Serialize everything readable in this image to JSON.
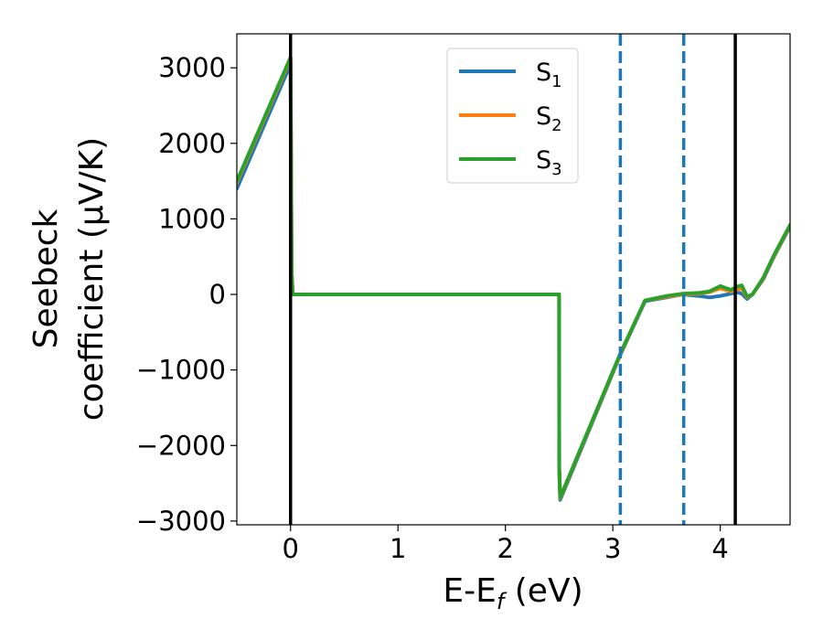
{
  "chart_data": {
    "type": "line",
    "xlabel": "E-E$_f$ (eV)",
    "xlabel_parts": {
      "main": "E-E",
      "sub": "f",
      "unit": " (eV)"
    },
    "ylabel_line1": "Seebeck",
    "ylabel_line2": "coefficient  (μV/K)",
    "xlim": [
      -0.5,
      4.65
    ],
    "ylim": [
      -3050,
      3450
    ],
    "xticks": [
      0,
      1,
      2,
      3,
      4
    ],
    "xtick_labels": [
      "0",
      "1",
      "2",
      "3",
      "4"
    ],
    "yticks": [
      -3000,
      -2000,
      -1000,
      0,
      1000,
      2000,
      3000
    ],
    "ytick_labels": [
      "−3000",
      "−2000",
      "−1000",
      "0",
      "1000",
      "2000",
      "3000"
    ],
    "grid": false,
    "legend_position": "top-center",
    "series": [
      {
        "name": "S1",
        "legend_main": "S",
        "legend_sub": "1",
        "color": "#1f77b4",
        "x": [
          -0.5,
          0.0,
          0.01,
          0.02,
          2.5,
          2.501,
          2.51,
          3.07,
          3.3,
          3.5,
          3.65,
          3.8,
          3.9,
          4.0,
          4.1,
          4.15,
          4.2,
          4.25,
          4.3,
          4.4,
          4.5,
          4.65
        ],
        "y": [
          1400,
          3050,
          300,
          0,
          0,
          -2300,
          -2720,
          -800,
          -90,
          -40,
          0,
          -20,
          -40,
          -20,
          10,
          30,
          10,
          -60,
          0,
          200,
          500,
          900
        ]
      },
      {
        "name": "S2",
        "legend_main": "S",
        "legend_sub": "2",
        "color": "#ff7f0e",
        "x": [
          -0.5,
          0.0,
          0.01,
          0.02,
          2.5,
          2.501,
          2.51,
          3.07,
          3.3,
          3.5,
          3.65,
          3.8,
          3.9,
          4.0,
          4.1,
          4.15,
          4.2,
          4.25,
          4.3,
          4.4,
          4.5,
          4.65
        ],
        "y": [
          1480,
          3120,
          300,
          0,
          0,
          -2300,
          -2700,
          -790,
          -80,
          -30,
          0,
          10,
          30,
          80,
          40,
          60,
          80,
          -40,
          0,
          210,
          510,
          910
        ]
      },
      {
        "name": "S3",
        "legend_main": "S",
        "legend_sub": "3",
        "color": "#2ca02c",
        "x": [
          -0.5,
          0.0,
          0.01,
          0.02,
          2.5,
          2.501,
          2.51,
          3.07,
          3.3,
          3.5,
          3.65,
          3.8,
          3.9,
          4.0,
          4.1,
          4.15,
          4.2,
          4.25,
          4.3,
          4.4,
          4.5,
          4.65
        ],
        "y": [
          1500,
          3140,
          300,
          0,
          0,
          -2300,
          -2690,
          -780,
          -80,
          -20,
          10,
          20,
          40,
          110,
          60,
          100,
          120,
          -30,
          0,
          220,
          520,
          920
        ]
      }
    ],
    "vertical_lines": [
      {
        "x": 0.0,
        "style": "solid",
        "color": "#000000"
      },
      {
        "x": 3.07,
        "style": "dashed",
        "color": "#1f77b4"
      },
      {
        "x": 3.66,
        "style": "dashed",
        "color": "#1f77b4"
      },
      {
        "x": 4.14,
        "style": "solid",
        "color": "#000000"
      }
    ]
  }
}
